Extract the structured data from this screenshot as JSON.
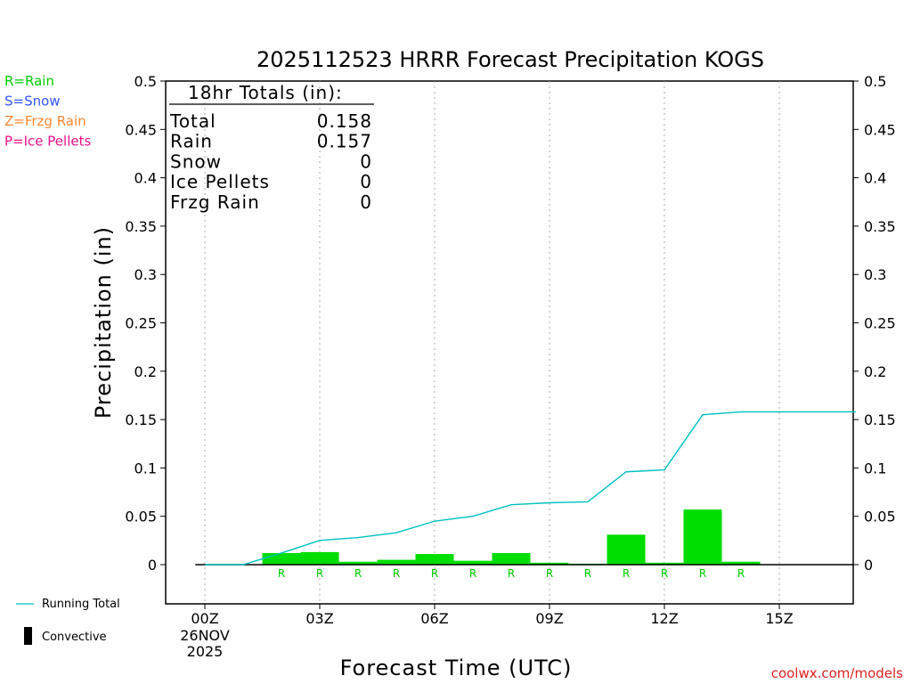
{
  "title": "2025112523 HRRR Forecast Precipitation KOGS",
  "credit": "coolwx.com/models",
  "legend": {
    "types": [
      {
        "text": "R=Rain",
        "color": "#00cc00"
      },
      {
        "text": "S=Snow",
        "color": "#3355ff"
      },
      {
        "text": "Z=Frzg Rain",
        "color": "#ff8833"
      },
      {
        "text": "P=Ice Pellets",
        "color": "#ee1188"
      }
    ],
    "running_total_label": "Running Total",
    "convective_label": "Convective"
  },
  "totals": {
    "header": "18hr Totals (in):",
    "rows": [
      {
        "label": "Total",
        "value": "0.158"
      },
      {
        "label": "Rain",
        "value": "0.157"
      },
      {
        "label": "Snow",
        "value": "0"
      },
      {
        "label": "Ice Pellets",
        "value": "0"
      },
      {
        "label": "Frzg Rain",
        "value": "0"
      }
    ]
  },
  "chart_data": {
    "type": "bar",
    "title": "2025112523 HRRR Forecast Precipitation KOGS",
    "xlabel": "Forecast Time (UTC)",
    "ylabel": "Precipitation (in)",
    "ylim": [
      -0.04,
      0.5
    ],
    "yticks": [
      0,
      0.05,
      0.1,
      0.15,
      0.2,
      0.25,
      0.3,
      0.35,
      0.4,
      0.45,
      0.5
    ],
    "ytick_labels": [
      "0",
      "0.05",
      "0.1",
      "0.15",
      "0.2",
      "0.25",
      "0.3",
      "0.35",
      "0.4",
      "0.45",
      "0.5"
    ],
    "xlim": [
      -1,
      17
    ],
    "xticks": [
      0,
      3,
      6,
      9,
      12,
      15
    ],
    "xtick_labels": [
      "00Z",
      "03Z",
      "06Z",
      "09Z",
      "12Z",
      "15Z"
    ],
    "first_tick_date": [
      "26NOV",
      "2025"
    ],
    "grid": "vertical dotted",
    "colors": {
      "rain": "#00dd00",
      "running_total": "#00c0c0",
      "convective": "#000000"
    },
    "hours": [
      1,
      2,
      3,
      4,
      5,
      6,
      7,
      8,
      9,
      10,
      11,
      12,
      13,
      14,
      15,
      16,
      17
    ],
    "hourly_precip": [
      0.0,
      0.012,
      0.013,
      0.003,
      0.005,
      0.011,
      0.004,
      0.012,
      0.002,
      0.001,
      0.031,
      0.002,
      0.057,
      0.003,
      0.0,
      0.0,
      0.0
    ],
    "convective_precip": [
      0,
      0,
      0,
      0,
      0,
      0,
      0,
      0,
      0,
      0,
      0,
      0,
      0,
      0,
      0,
      0,
      0
    ],
    "ptype_labels": [
      {
        "hour": 2,
        "text": "R"
      },
      {
        "hour": 3,
        "text": "R"
      },
      {
        "hour": 4,
        "text": "R"
      },
      {
        "hour": 5,
        "text": "R"
      },
      {
        "hour": 6,
        "text": "R"
      },
      {
        "hour": 7,
        "text": "R"
      },
      {
        "hour": 8,
        "text": "R"
      },
      {
        "hour": 9,
        "text": "R"
      },
      {
        "hour": 10,
        "text": "R"
      },
      {
        "hour": 11,
        "text": "R"
      },
      {
        "hour": 12,
        "text": "R"
      },
      {
        "hour": 13,
        "text": "R"
      },
      {
        "hour": 14,
        "text": "R"
      }
    ],
    "running_total": {
      "hours": [
        0,
        1,
        2,
        3,
        4,
        5,
        6,
        7,
        8,
        9,
        10,
        11,
        12,
        13,
        14,
        15,
        16,
        17
      ],
      "values": [
        0.0,
        0.0,
        0.012,
        0.025,
        0.028,
        0.033,
        0.045,
        0.05,
        0.062,
        0.064,
        0.065,
        0.096,
        0.098,
        0.155,
        0.158,
        0.158,
        0.158,
        0.158
      ]
    }
  }
}
